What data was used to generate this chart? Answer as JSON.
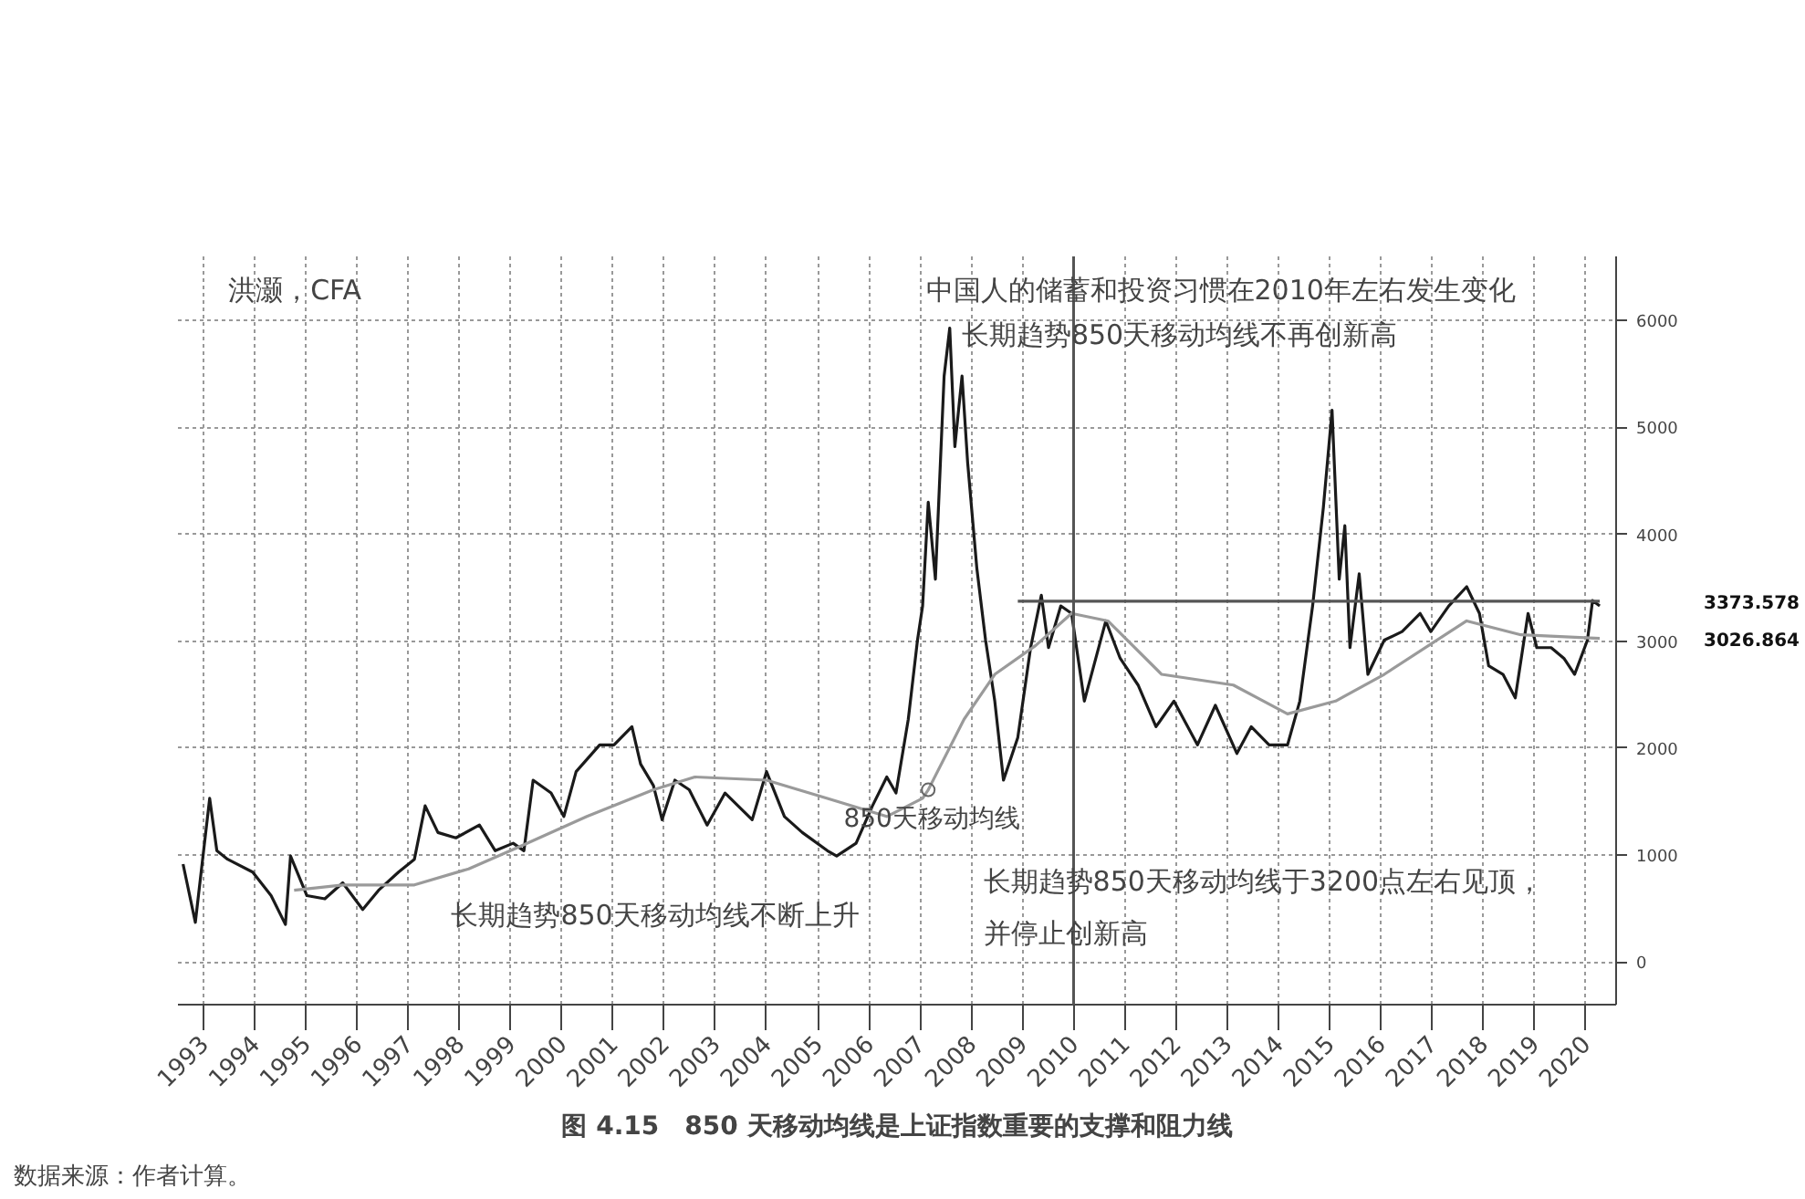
{
  "chart_data": {
    "type": "line",
    "title": "图 4.15　850 天移动均线是上证指数重要的支撑和阻力线",
    "xlim": [
      1992.5,
      2020.6
    ],
    "xticks": [
      1993,
      1994,
      1995,
      1996,
      1997,
      1998,
      1999,
      2000,
      2001,
      2002,
      2003,
      2004,
      2005,
      2006,
      2007,
      2008,
      2009,
      2010,
      2011,
      2012,
      2013,
      2014,
      2015,
      2016,
      2017,
      2018,
      2019,
      2020
    ],
    "ylim": [
      -400,
      6600
    ],
    "yticks": [
      0,
      1000,
      2000,
      3000,
      4000,
      5000,
      6000
    ],
    "grid": true,
    "marker": "none",
    "line_style": "solid",
    "series": [
      {
        "color": "#1a1a1a",
        "x": [
          1992.6,
          1992.84,
          1993.12,
          1993.26,
          1993.47,
          1993.96,
          1994.32,
          1994.6,
          1994.7,
          1995.02,
          1995.37,
          1995.72,
          1996.11,
          1996.42,
          1996.81,
          1997.12,
          1997.33,
          1997.58,
          1997.93,
          1998.39,
          1998.7,
          1999.05,
          1999.26,
          1999.44,
          1999.79,
          2000.04,
          2000.28,
          2000.74,
          2001.02,
          2001.37,
          2001.54,
          2001.79,
          2001.96,
          2002.21,
          2002.49,
          2002.84,
          2003.19,
          2003.72,
          2004.0,
          2004.35,
          2004.7,
          2005.19,
          2005.37,
          2005.75,
          2006.07,
          2006.35,
          2006.53,
          2006.77,
          2006.95,
          2007.05,
          2007.16,
          2007.3,
          2007.47,
          2007.58,
          2007.68,
          2007.82,
          2007.93,
          2008.11,
          2008.28,
          2008.46,
          2008.63,
          2008.91,
          2009.16,
          2009.37,
          2009.51,
          2009.75,
          2009.96,
          2010.21,
          2010.63,
          2010.91,
          2011.26,
          2011.61,
          2011.96,
          2012.42,
          2012.77,
          2013.19,
          2013.47,
          2013.82,
          2014.18,
          2014.42,
          2014.67,
          2014.88,
          2015.05,
          2015.19,
          2015.3,
          2015.4,
          2015.58,
          2015.75,
          2016.07,
          2016.42,
          2016.77,
          2016.98,
          2017.33,
          2017.68,
          2017.93,
          2018.11,
          2018.39,
          2018.63,
          2018.88,
          2019.05,
          2019.33,
          2019.58,
          2019.79,
          2020.04,
          2020.14,
          2020.28
        ],
        "values": [
          915,
          370,
          1530,
          1040,
          960,
          840,
          620,
          350,
          990,
          620,
          590,
          740,
          490,
          670,
          840,
          960,
          1460,
          1210,
          1160,
          1280,
          1040,
          1110,
          1040,
          1700,
          1580,
          1360,
          1780,
          2030,
          2030,
          2200,
          1850,
          1650,
          1330,
          1700,
          1610,
          1280,
          1580,
          1330,
          1780,
          1360,
          1210,
          1040,
          990,
          1110,
          1460,
          1730,
          1580,
          2270,
          3010,
          3330,
          4300,
          3580,
          5480,
          5930,
          4820,
          5480,
          4670,
          3680,
          3010,
          2440,
          1700,
          2100,
          2940,
          3430,
          2940,
          3330,
          3260,
          2440,
          3190,
          2840,
          2590,
          2200,
          2440,
          2030,
          2400,
          1950,
          2200,
          2030,
          2030,
          2440,
          3330,
          4250,
          5160,
          3580,
          4080,
          2940,
          3630,
          2690,
          3010,
          3090,
          3260,
          3090,
          3330,
          3510,
          3260,
          2770,
          2690,
          2470,
          3260,
          2940,
          2940,
          2840,
          2690,
          3010,
          3380,
          3330
        ]
      },
      {
        "color": "#9a9a9a",
        "x": [
          1994.77,
          1995.72,
          1997.12,
          1998.18,
          1999.23,
          2000.49,
          2001.79,
          2002.6,
          2004.0,
          2005.19,
          2006.35,
          2007.05,
          2007.16,
          2007.86,
          2008.46,
          2009.26,
          2009.96,
          2010.67,
          2011.72,
          2013.12,
          2014.18,
          2015.12,
          2016.07,
          2017.68,
          2018.74,
          2020.28
        ],
        "values": [
          670,
          720,
          720,
          870,
          1090,
          1360,
          1610,
          1730,
          1700,
          1530,
          1360,
          1530,
          1610,
          2270,
          2690,
          2960,
          3260,
          3190,
          2690,
          2590,
          2320,
          2440,
          2690,
          3190,
          3060,
          3026.864
        ]
      },
      {
        "color": "#555555",
        "x": [
          2008.91,
          2020.28
        ],
        "values": [
          3373.578,
          3373.578
        ]
      }
    ],
    "ref_lines": [
      {
        "axis": "x",
        "value": 2010,
        "color": "#555555"
      }
    ],
    "annotations": [
      "洪灏，CFA",
      "中国人的储蓄和投资习惯在2010年左右发生变化",
      "长期趋势850天移动均线不再创新高",
      "长期趋势850天移动均线不断上升",
      "长期趋势850天移动均线于3200点左右见顶，",
      "并停止创新高",
      {
        "text": "850天移动均线",
        "x": 2007.16,
        "y": 1610
      },
      "3373.578",
      "3026.864",
      "数据来源：作者计算。"
    ]
  }
}
